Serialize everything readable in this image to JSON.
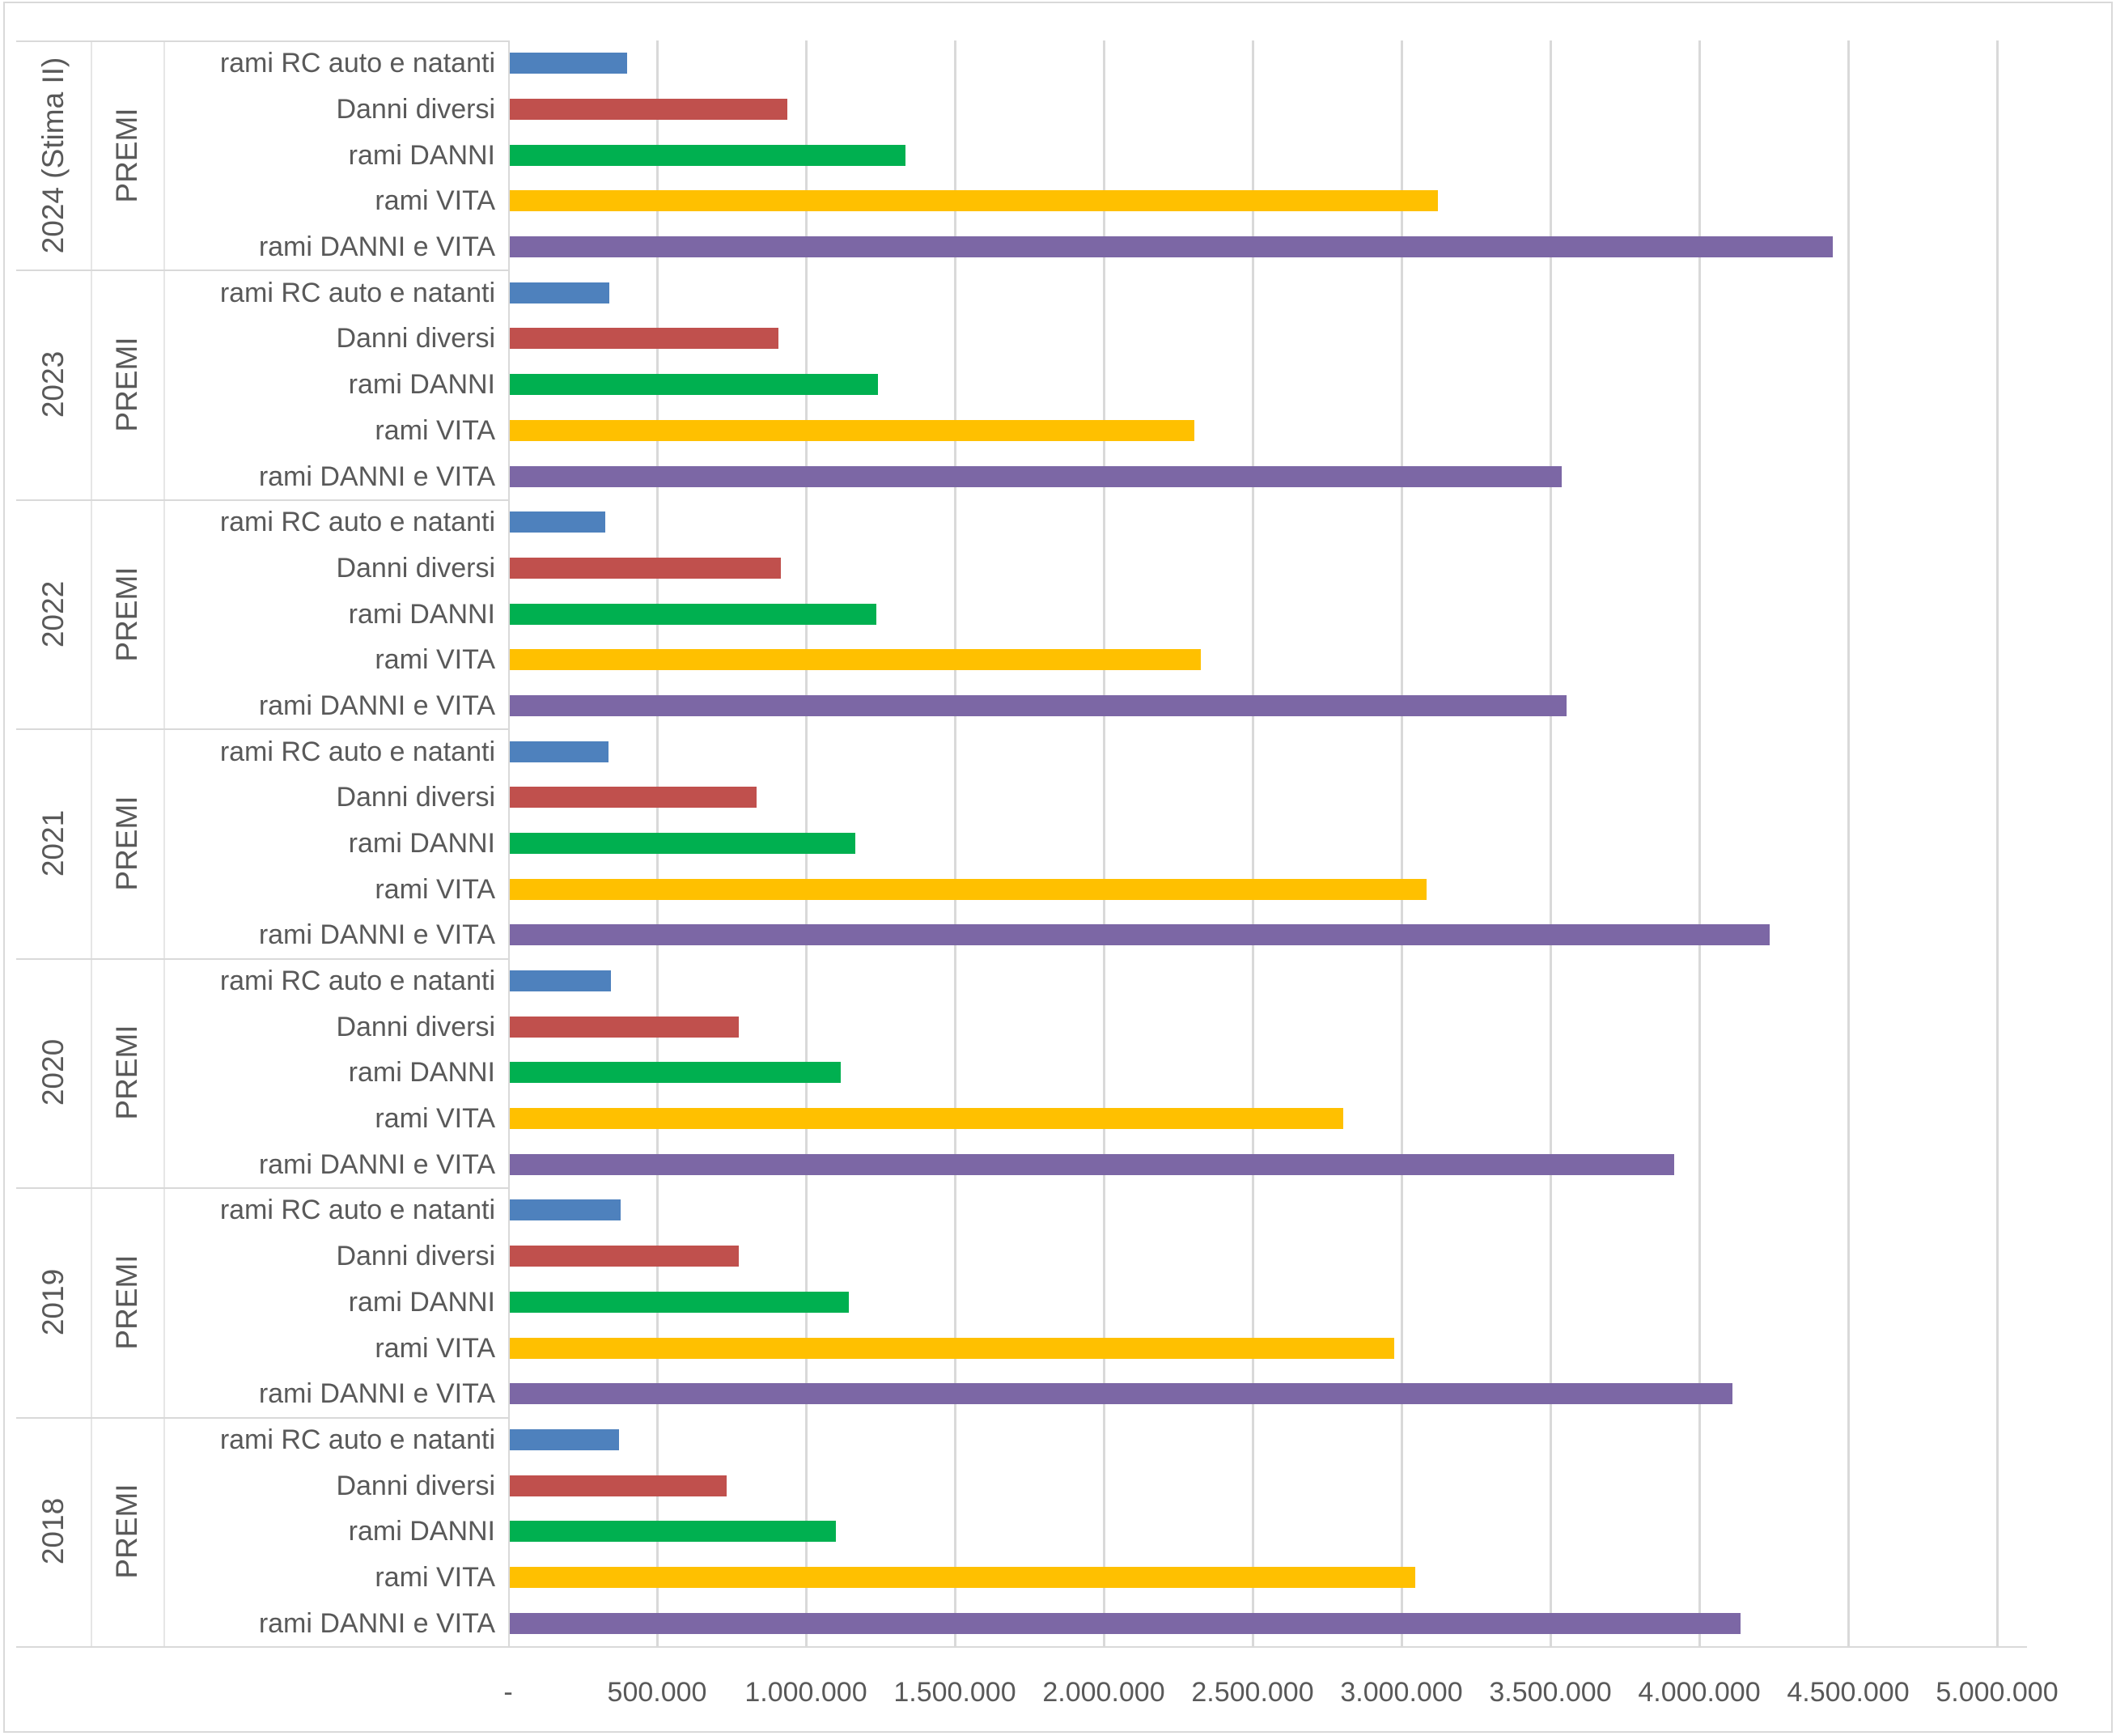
{
  "chart_data": {
    "type": "bar",
    "orientation": "horizontal",
    "title": "",
    "measure_label": "PREMI",
    "categories": [
      "rami RC auto e natanti",
      "Danni diversi",
      "rami DANNI",
      "rami VITA",
      "rami DANNI e VITA"
    ],
    "series_colors": {
      "rami RC auto e natanti": "#4e81bd",
      "Danni diversi": "#c0504d",
      "rami DANNI": "#00b050",
      "rami VITA": "#ffc000",
      "rami DANNI e VITA": "#7c67a5"
    },
    "groups": [
      {
        "year": "2024 (Stima II)",
        "measure": "PREMI",
        "values": [
          395000,
          933000,
          1328000,
          3116000,
          4444000
        ]
      },
      {
        "year": "2023",
        "measure": "PREMI",
        "values": [
          333000,
          903000,
          1236000,
          2300000,
          3532000
        ]
      },
      {
        "year": "2022",
        "measure": "PREMI",
        "values": [
          320000,
          910000,
          1230000,
          2322000,
          3550000
        ]
      },
      {
        "year": "2021",
        "measure": "PREMI",
        "values": [
          331000,
          828000,
          1159000,
          3078000,
          4230000
        ]
      },
      {
        "year": "2020",
        "measure": "PREMI",
        "values": [
          341000,
          770000,
          1111000,
          2800000,
          3911000
        ]
      },
      {
        "year": "2019",
        "measure": "PREMI",
        "values": [
          371000,
          768000,
          1139000,
          2970000,
          4107000
        ]
      },
      {
        "year": "2018",
        "measure": "PREMI",
        "values": [
          368000,
          727000,
          1095000,
          3040000,
          4133000
        ]
      }
    ],
    "x_axis": {
      "min": 0,
      "max": 5000000,
      "tick_interval": 500000,
      "grid": true,
      "tick_labels": [
        "-",
        "500.000",
        "1.000.000",
        "1.500.000",
        "2.000.000",
        "2.500.000",
        "3.000.000",
        "3.500.000",
        "4.000.000",
        "4.500.000",
        "5.000.000"
      ]
    },
    "legend": "none"
  },
  "colors": {
    "text": "#595959",
    "gridline": "#d9d9d9",
    "border": "#d9d9d9",
    "background": "#ffffff"
  }
}
